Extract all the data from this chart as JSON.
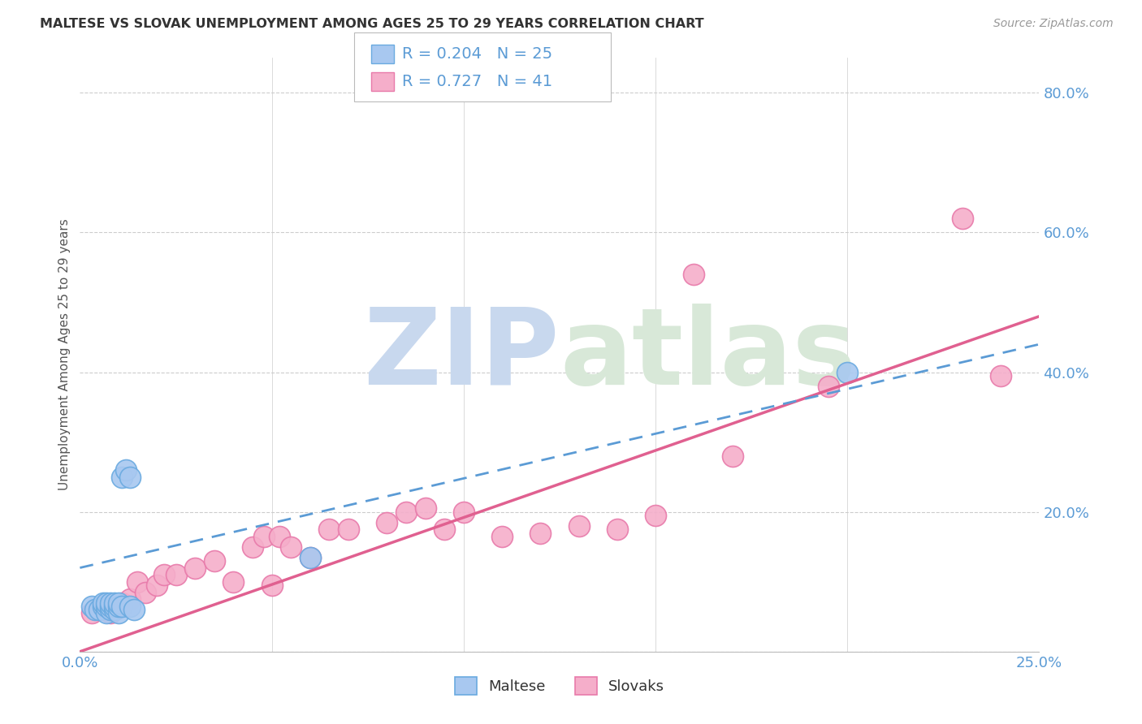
{
  "title": "MALTESE VS SLOVAK UNEMPLOYMENT AMONG AGES 25 TO 29 YEARS CORRELATION CHART",
  "source": "Source: ZipAtlas.com",
  "ylabel": "Unemployment Among Ages 25 to 29 years",
  "xlim": [
    0.0,
    0.25
  ],
  "ylim": [
    0.0,
    0.85
  ],
  "xticks": [
    0.0,
    0.05,
    0.1,
    0.15,
    0.2,
    0.25
  ],
  "yticks": [
    0.0,
    0.2,
    0.4,
    0.6,
    0.8
  ],
  "ytick_labels": [
    "",
    "20.0%",
    "40.0%",
    "60.0%",
    "80.0%"
  ],
  "xtick_labels": [
    "0.0%",
    "",
    "",
    "",
    "",
    "25.0%"
  ],
  "blue_R": 0.204,
  "blue_N": 25,
  "pink_R": 0.727,
  "pink_N": 41,
  "blue_color": "#A8C8F0",
  "pink_color": "#F5AECA",
  "blue_edge_color": "#6AAAE0",
  "pink_edge_color": "#E87AAA",
  "blue_line_color": "#5B9BD5",
  "pink_line_color": "#E06090",
  "legend_label_blue": "Maltese",
  "legend_label_pink": "Slovaks",
  "blue_x": [
    0.003,
    0.004,
    0.005,
    0.006,
    0.006,
    0.007,
    0.007,
    0.007,
    0.008,
    0.008,
    0.008,
    0.009,
    0.009,
    0.009,
    0.01,
    0.01,
    0.01,
    0.011,
    0.011,
    0.012,
    0.013,
    0.013,
    0.014,
    0.06,
    0.2
  ],
  "blue_y": [
    0.065,
    0.06,
    0.06,
    0.065,
    0.07,
    0.055,
    0.065,
    0.07,
    0.06,
    0.065,
    0.07,
    0.06,
    0.065,
    0.07,
    0.055,
    0.065,
    0.07,
    0.065,
    0.25,
    0.26,
    0.065,
    0.25,
    0.06,
    0.135,
    0.4
  ],
  "pink_x": [
    0.003,
    0.005,
    0.006,
    0.007,
    0.008,
    0.008,
    0.009,
    0.01,
    0.011,
    0.013,
    0.015,
    0.017,
    0.02,
    0.022,
    0.025,
    0.03,
    0.035,
    0.04,
    0.045,
    0.048,
    0.05,
    0.052,
    0.055,
    0.06,
    0.065,
    0.07,
    0.08,
    0.085,
    0.09,
    0.095,
    0.1,
    0.11,
    0.12,
    0.13,
    0.14,
    0.15,
    0.16,
    0.17,
    0.195,
    0.23,
    0.24
  ],
  "pink_y": [
    0.055,
    0.06,
    0.065,
    0.06,
    0.055,
    0.065,
    0.06,
    0.065,
    0.07,
    0.075,
    0.1,
    0.085,
    0.095,
    0.11,
    0.11,
    0.12,
    0.13,
    0.1,
    0.15,
    0.165,
    0.095,
    0.165,
    0.15,
    0.135,
    0.175,
    0.175,
    0.185,
    0.2,
    0.205,
    0.175,
    0.2,
    0.165,
    0.17,
    0.18,
    0.175,
    0.195,
    0.54,
    0.28,
    0.38,
    0.62,
    0.395
  ],
  "watermark_zip": "ZIP",
  "watermark_atlas": "atlas",
  "watermark_color": "#C8D8EE",
  "background_color": "#FFFFFF",
  "grid_color": "#CCCCCC",
  "pink_line_x0": 0.0,
  "pink_line_y0": 0.0,
  "pink_line_x1": 0.25,
  "pink_line_y1": 0.48,
  "blue_line_x0": 0.0,
  "blue_line_y0": 0.12,
  "blue_line_x1": 0.25,
  "blue_line_y1": 0.44
}
